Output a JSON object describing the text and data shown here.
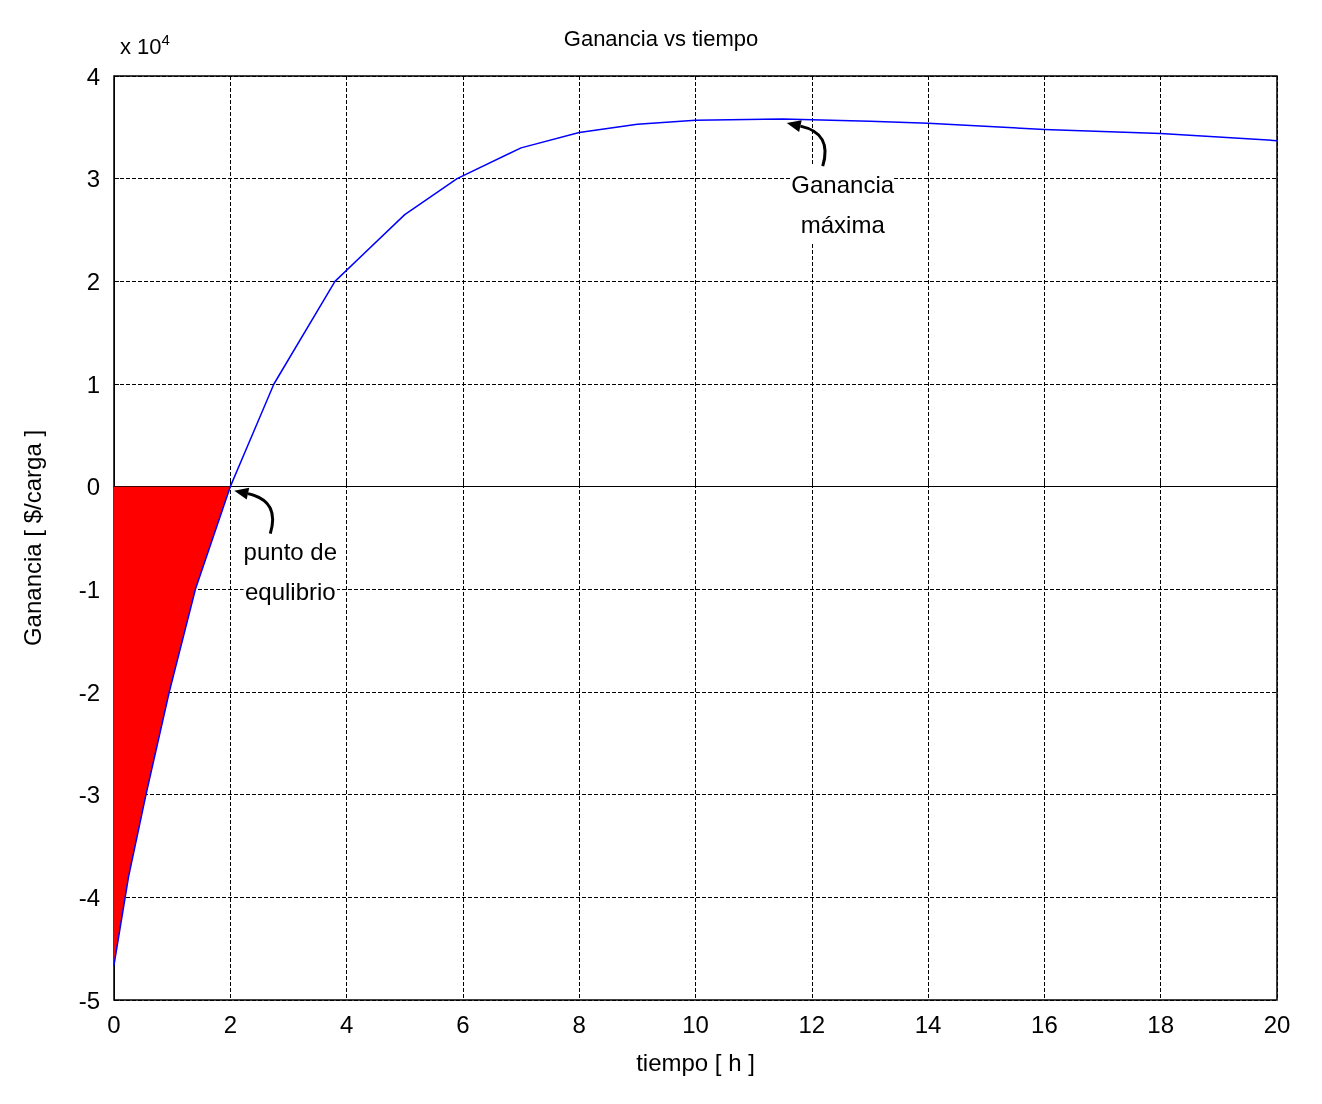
{
  "chart_data": {
    "type": "line",
    "title": "Ganancia vs tiempo",
    "xlabel": "tiempo [ h ]",
    "ylabel": "Ganancia [ $/carga ]",
    "annotations": [
      "x 10$^{4}$",
      {
        "text": "Ganancia\nmáxima",
        "x": 11.5,
        "y": 3.58
      },
      {
        "text": "punto de\nequlibrio",
        "x": 2,
        "y": 0
      }
    ],
    "series": [
      {
        "type": "area",
        "color": "#ff0000",
        "x": [
          0,
          0.25,
          0.55,
          0.95,
          1.4,
          2
        ],
        "values": [
          -4.66,
          -3.8,
          -3,
          -2,
          -1,
          0
        ]
      },
      {
        "color": "#0000ff",
        "x": [
          0,
          0.25,
          0.55,
          0.95,
          1.4,
          2,
          2.75,
          3.8,
          5,
          5.9,
          7,
          8,
          9,
          10,
          11.5,
          13,
          14,
          16,
          18,
          20
        ],
        "values": [
          -4.66,
          -3.8,
          -3,
          -2,
          -1,
          0,
          1,
          2,
          2.65,
          3,
          3.3,
          3.45,
          3.53,
          3.57,
          3.58,
          3.56,
          3.54,
          3.48,
          3.44,
          3.37
        ]
      }
    ],
    "xlim": [
      0,
      20
    ],
    "xticks": [
      0,
      2,
      4,
      6,
      8,
      10,
      12,
      14,
      16,
      18,
      20
    ],
    "ylim": [
      -5,
      4
    ],
    "yticks": [
      -5,
      -4,
      -3,
      -2,
      -1,
      0,
      1,
      2,
      3,
      4
    ],
    "grid": true,
    "line_style": "solid"
  }
}
